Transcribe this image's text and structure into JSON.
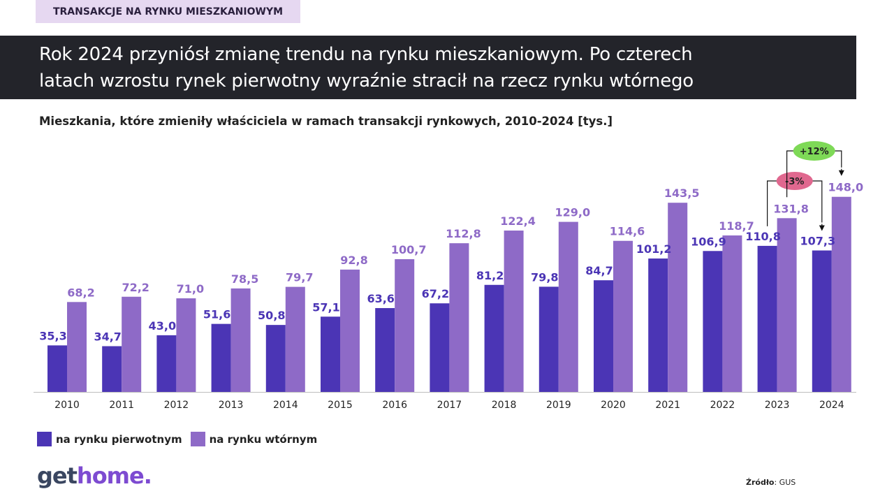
{
  "tag": "TRANSAKCJE NA RYNKU MIESZKANIOWYM",
  "headline_line1": "Rok 2024 przyniósł zmianę trendu na rynku mieszkaniowym. Po czterech",
  "headline_line2": "latach wzrostu rynek pierwotny wyraźnie stracił na rzecz rynku wtórnego",
  "colors": {
    "primary": "#4b35b5",
    "secondary": "#8e6ac7",
    "badge_neg": "#e0688f",
    "badge_pos": "#7ed957"
  },
  "chart_data": {
    "type": "bar",
    "title": "Mieszkania, które zmieniły właściciela w ramach transakcji rynkowych, 2010-2024 [tys.]",
    "categories": [
      "2010",
      "2011",
      "2012",
      "2013",
      "2014",
      "2015",
      "2016",
      "2017",
      "2018",
      "2019",
      "2020",
      "2021",
      "2022",
      "2023",
      "2024"
    ],
    "series": [
      {
        "name": "na rynku pierwotnym",
        "values": [
          35.3,
          34.7,
          43.0,
          51.6,
          50.8,
          57.1,
          63.6,
          67.2,
          81.2,
          79.8,
          84.7,
          101.2,
          106.9,
          110.8,
          107.3
        ],
        "labels": [
          "35,3",
          "34,7",
          "43,0",
          "51,6",
          "50,8",
          "57,1",
          "63,6",
          "67,2",
          "81,2",
          "79,8",
          "84,7",
          "101,2",
          "106,9",
          "110,8",
          "107,3"
        ]
      },
      {
        "name": "na rynku wtórnym",
        "values": [
          68.2,
          72.2,
          71.0,
          78.5,
          79.7,
          92.8,
          100.7,
          112.8,
          122.4,
          129.0,
          114.6,
          143.5,
          118.7,
          131.8,
          148.0
        ],
        "labels": [
          "68,2",
          "72,2",
          "71,0",
          "78,5",
          "79,7",
          "92,8",
          "100,7",
          "112,8",
          "122,4",
          "129,0",
          "114,6",
          "143,5",
          "118,7",
          "131,8",
          "148,0"
        ]
      }
    ],
    "ylim": [
      0,
      150
    ],
    "annotations": [
      {
        "text": "-3%",
        "from": "2023",
        "to": "2024",
        "series": "na rynku pierwotnym"
      },
      {
        "text": "+12%",
        "from": "2023",
        "to": "2024",
        "series": "na rynku wtórnym"
      }
    ]
  },
  "logo": {
    "get": "get",
    "home": "home."
  },
  "source_label": "Źródło",
  "source_value": ": GUS"
}
